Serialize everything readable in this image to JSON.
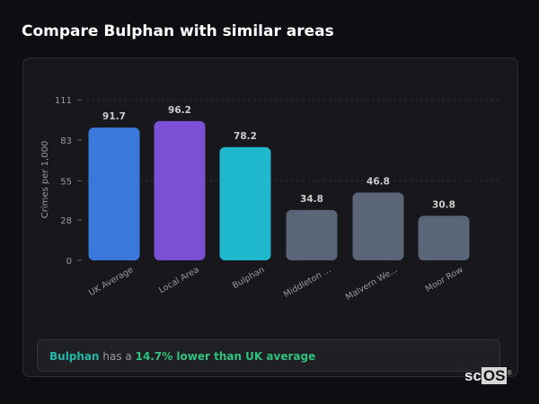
{
  "title": "Compare Bulphan with similar areas",
  "chart_data": {
    "type": "bar",
    "ylabel": "Crimes per 1,000",
    "ylim": [
      0,
      111
    ],
    "yticks": [
      0,
      28,
      55,
      83,
      111
    ],
    "categories": [
      "UK Average",
      "Local Area",
      "Bulphan",
      "Middleton ...",
      "Malvern We...",
      "Moor Row"
    ],
    "values": [
      91.7,
      96.2,
      78.2,
      34.8,
      46.8,
      30.8
    ],
    "value_labels": [
      "91.7",
      "96.2",
      "78.2",
      "34.8",
      "46.8",
      "30.8"
    ],
    "colors": [
      "#3a78dc",
      "#7b50d4",
      "#20b8cc",
      "#5a6678",
      "#5a6678",
      "#5a6678"
    ]
  },
  "summary": {
    "place": "Bulphan",
    "middle": " has a ",
    "highlight": "14.7% lower than UK average"
  },
  "logo": {
    "prefix": "sc",
    "box": "OS"
  }
}
